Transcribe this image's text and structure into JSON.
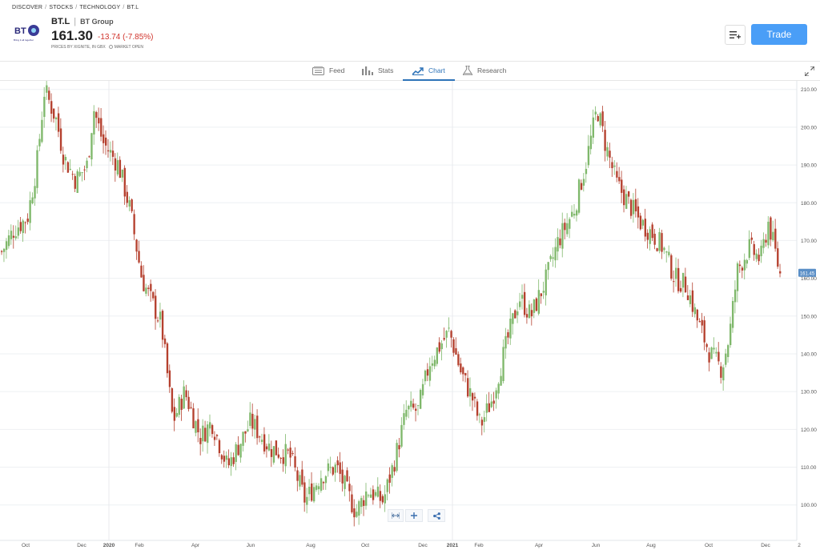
{
  "breadcrumb": [
    "DISCOVER",
    "STOCKS",
    "TECHNOLOGY",
    "BT.L"
  ],
  "instrument": {
    "symbol": "BT.L",
    "name": "BT Group",
    "price": "161.30",
    "change": "-13.74 (-7.85%)",
    "source": "PRICES BY XIGNITE, IN GBX",
    "market_status": "MARKET OPEN",
    "logo_text": "BT",
    "logo_tagline": "Bring it all together"
  },
  "actions": {
    "trade_label": "Trade",
    "watchlist_icon": "add-to-watchlist-icon"
  },
  "tabs": [
    {
      "label": "Feed",
      "icon": "feed-icon",
      "active": false
    },
    {
      "label": "Stats",
      "icon": "stats-icon",
      "active": false
    },
    {
      "label": "Chart",
      "icon": "chart-icon",
      "active": true
    },
    {
      "label": "Research",
      "icon": "research-icon",
      "active": false
    }
  ],
  "colors": {
    "up": "#7fb86b",
    "down": "#b5402e",
    "accent": "#4a9ef7",
    "active_tab": "#2e73b8",
    "negative": "#d0342c"
  },
  "chart_data": {
    "type": "candlestick",
    "y_ticks": [
      "100.00",
      "110.00",
      "120.00",
      "130.00",
      "140.00",
      "150.00",
      "160.00",
      "170.00",
      "180.00",
      "190.00",
      "200.00",
      "210.00"
    ],
    "ylim": [
      94,
      211
    ],
    "x_ticks": [
      "Oct",
      "Dec",
      "2020",
      "Feb",
      "Apr",
      "Jun",
      "Aug",
      "Oct",
      "Dec",
      "2021",
      "Feb",
      "Apr",
      "Jun",
      "Aug",
      "Oct",
      "Dec",
      "2"
    ],
    "bold_ticks": [
      "2020",
      "2021"
    ],
    "current_price_label": "161.45",
    "close_series": [
      {
        "t": 0.0,
        "v": 167
      },
      {
        "t": 0.016,
        "v": 173
      },
      {
        "t": 0.033,
        "v": 176
      },
      {
        "t": 0.045,
        "v": 190
      },
      {
        "t": 0.055,
        "v": 210
      },
      {
        "t": 0.07,
        "v": 202
      },
      {
        "t": 0.08,
        "v": 192
      },
      {
        "t": 0.095,
        "v": 186
      },
      {
        "t": 0.11,
        "v": 190
      },
      {
        "t": 0.118,
        "v": 205
      },
      {
        "t": 0.13,
        "v": 196
      },
      {
        "t": 0.15,
        "v": 190
      },
      {
        "t": 0.165,
        "v": 178
      },
      {
        "t": 0.18,
        "v": 160
      },
      {
        "t": 0.19,
        "v": 155
      },
      {
        "t": 0.205,
        "v": 148
      },
      {
        "t": 0.22,
        "v": 122
      },
      {
        "t": 0.235,
        "v": 130
      },
      {
        "t": 0.255,
        "v": 118
      },
      {
        "t": 0.27,
        "v": 122
      },
      {
        "t": 0.29,
        "v": 110
      },
      {
        "t": 0.32,
        "v": 122
      },
      {
        "t": 0.345,
        "v": 115
      },
      {
        "t": 0.37,
        "v": 113
      },
      {
        "t": 0.39,
        "v": 101
      },
      {
        "t": 0.41,
        "v": 108
      },
      {
        "t": 0.43,
        "v": 110
      },
      {
        "t": 0.455,
        "v": 98
      },
      {
        "t": 0.47,
        "v": 104
      },
      {
        "t": 0.49,
        "v": 101
      },
      {
        "t": 0.505,
        "v": 112
      },
      {
        "t": 0.52,
        "v": 125
      },
      {
        "t": 0.535,
        "v": 125
      },
      {
        "t": 0.55,
        "v": 138
      },
      {
        "t": 0.575,
        "v": 146
      },
      {
        "t": 0.59,
        "v": 135
      },
      {
        "t": 0.605,
        "v": 128
      },
      {
        "t": 0.615,
        "v": 121
      },
      {
        "t": 0.63,
        "v": 128
      },
      {
        "t": 0.645,
        "v": 140
      },
      {
        "t": 0.665,
        "v": 155
      },
      {
        "t": 0.68,
        "v": 150
      },
      {
        "t": 0.7,
        "v": 160
      },
      {
        "t": 0.715,
        "v": 170
      },
      {
        "t": 0.735,
        "v": 178
      },
      {
        "t": 0.75,
        "v": 190
      },
      {
        "t": 0.765,
        "v": 205
      },
      {
        "t": 0.775,
        "v": 196
      },
      {
        "t": 0.79,
        "v": 185
      },
      {
        "t": 0.805,
        "v": 180
      },
      {
        "t": 0.82,
        "v": 175
      },
      {
        "t": 0.835,
        "v": 172
      },
      {
        "t": 0.85,
        "v": 168
      },
      {
        "t": 0.865,
        "v": 160
      },
      {
        "t": 0.88,
        "v": 158
      },
      {
        "t": 0.895,
        "v": 148
      },
      {
        "t": 0.91,
        "v": 140
      },
      {
        "t": 0.925,
        "v": 136
      },
      {
        "t": 0.935,
        "v": 145
      },
      {
        "t": 0.945,
        "v": 162
      },
      {
        "t": 0.96,
        "v": 168
      },
      {
        "t": 0.975,
        "v": 165
      },
      {
        "t": 0.985,
        "v": 175
      },
      {
        "t": 1.0,
        "v": 161
      }
    ]
  }
}
